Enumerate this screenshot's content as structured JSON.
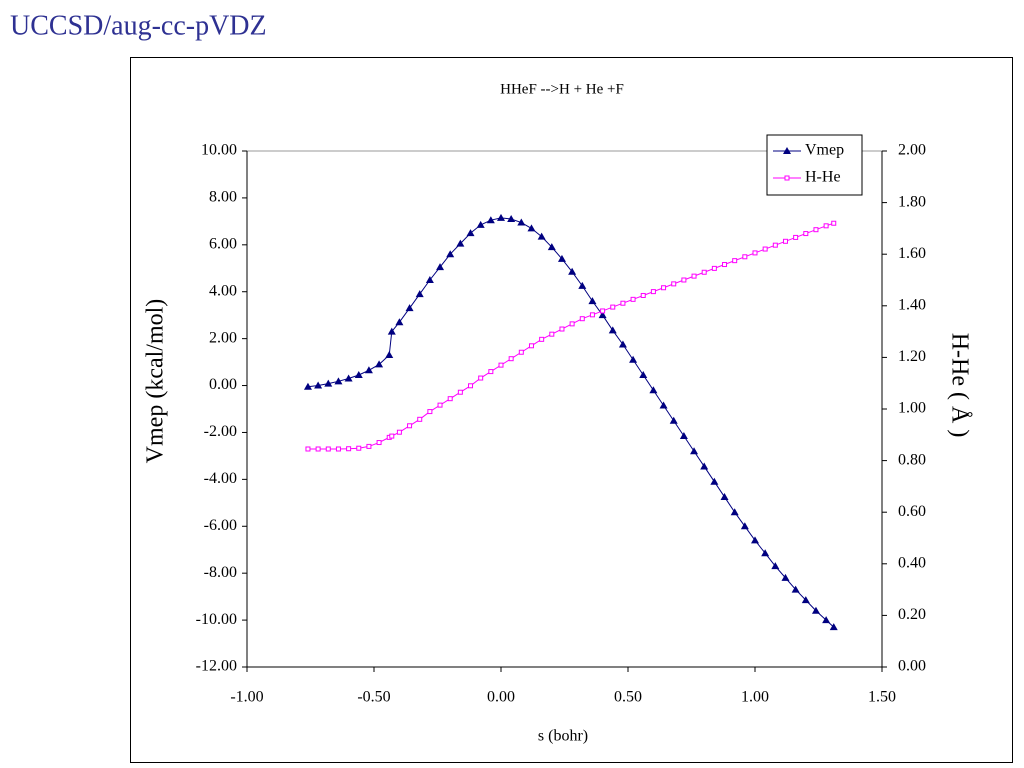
{
  "header": {
    "title": "UCCSD/aug-cc-pVDZ"
  },
  "chart_data": {
    "type": "line",
    "title": "HHeF -->H + He +F",
    "x_label": "s (bohr)",
    "y_label": "Vmep (kcal/mol)",
    "y2_label": "H-He ( Å )",
    "xlim": [
      -1.0,
      1.5
    ],
    "xticks": [
      {
        "value": -1.0,
        "label": "-1.00"
      },
      {
        "value": -0.5,
        "label": "-0.50"
      },
      {
        "value": 0,
        "label": "0.00"
      },
      {
        "value": 0.5,
        "label": "0.50"
      },
      {
        "value": 1.0,
        "label": "1.00"
      },
      {
        "value": 1.5,
        "label": "1.50"
      }
    ],
    "ylim": [
      -12,
      10
    ],
    "yticks": [
      {
        "value": -12,
        "label": "-12.00"
      },
      {
        "value": -10,
        "label": "-10.00"
      },
      {
        "value": -8,
        "label": "-8.00"
      },
      {
        "value": -6,
        "label": "-6.00"
      },
      {
        "value": -4,
        "label": "-4.00"
      },
      {
        "value": -2,
        "label": "-2.00"
      },
      {
        "value": 0,
        "label": "0.00"
      },
      {
        "value": 2,
        "label": "2.00"
      },
      {
        "value": 4,
        "label": "4.00"
      },
      {
        "value": 6,
        "label": "6.00"
      },
      {
        "value": 8,
        "label": "8.00"
      },
      {
        "value": 10,
        "label": "10.00"
      }
    ],
    "y2lim": [
      0,
      2
    ],
    "y2ticks": [
      {
        "value": 0,
        "label": "0.00"
      },
      {
        "value": 0.2,
        "label": "0.20"
      },
      {
        "value": 0.4,
        "label": "0.40"
      },
      {
        "value": 0.6,
        "label": "0.60"
      },
      {
        "value": 0.8,
        "label": "0.80"
      },
      {
        "value": 1.0,
        "label": "1.00"
      },
      {
        "value": 1.2,
        "label": "1.20"
      },
      {
        "value": 1.4,
        "label": "1.40"
      },
      {
        "value": 1.6,
        "label": "1.60"
      },
      {
        "value": 1.8,
        "label": "1.80"
      },
      {
        "value": 2.0,
        "label": "2.00"
      }
    ],
    "legend": "upper right",
    "x": [
      -0.76,
      -0.72,
      -0.68,
      -0.64,
      -0.6,
      -0.56,
      -0.52,
      -0.48,
      -0.44,
      -0.43,
      -0.4,
      -0.36,
      -0.32,
      -0.28,
      -0.24,
      -0.2,
      -0.16,
      -0.12,
      -0.08,
      -0.04,
      0.0,
      0.04,
      0.08,
      0.12,
      0.16,
      0.2,
      0.24,
      0.28,
      0.32,
      0.36,
      0.4,
      0.44,
      0.48,
      0.52,
      0.56,
      0.6,
      0.64,
      0.68,
      0.72,
      0.76,
      0.8,
      0.84,
      0.88,
      0.92,
      0.96,
      1.0,
      1.04,
      1.08,
      1.12,
      1.16,
      1.2,
      1.24,
      1.28,
      1.31
    ],
    "series": [
      {
        "name": "Vmep",
        "color": "#000080",
        "marker": "triangle",
        "values": [
          -0.05,
          0,
          0.08,
          0.18,
          0.3,
          0.45,
          0.65,
          0.9,
          1.3,
          2.3,
          2.7,
          3.3,
          3.9,
          4.5,
          5.05,
          5.6,
          6.05,
          6.5,
          6.85,
          7.05,
          7.15,
          7.1,
          6.95,
          6.7,
          6.35,
          5.9,
          5.4,
          4.85,
          4.25,
          3.6,
          3.0,
          2.35,
          1.75,
          1.1,
          0.45,
          -0.2,
          -0.85,
          -1.5,
          -2.15,
          -2.8,
          -3.45,
          -4.1,
          -4.75,
          -5.4,
          -6.0,
          -6.6,
          -7.15,
          -7.7,
          -8.2,
          -8.7,
          -9.15,
          -9.6,
          -10.0,
          -10.3
        ]
      },
      {
        "name": "H-He",
        "color": "#ff00ff",
        "marker": "square",
        "axis": "y2",
        "values": [
          0.845,
          0.845,
          0.845,
          0.845,
          0.846,
          0.848,
          0.855,
          0.87,
          0.89,
          0.895,
          0.91,
          0.935,
          0.96,
          0.99,
          1.015,
          1.04,
          1.065,
          1.09,
          1.12,
          1.145,
          1.17,
          1.195,
          1.22,
          1.245,
          1.27,
          1.29,
          1.31,
          1.33,
          1.35,
          1.365,
          1.38,
          1.395,
          1.41,
          1.425,
          1.44,
          1.455,
          1.47,
          1.485,
          1.5,
          1.515,
          1.53,
          1.545,
          1.56,
          1.575,
          1.59,
          1.605,
          1.62,
          1.635,
          1.65,
          1.665,
          1.68,
          1.695,
          1.71,
          1.72
        ]
      }
    ]
  }
}
